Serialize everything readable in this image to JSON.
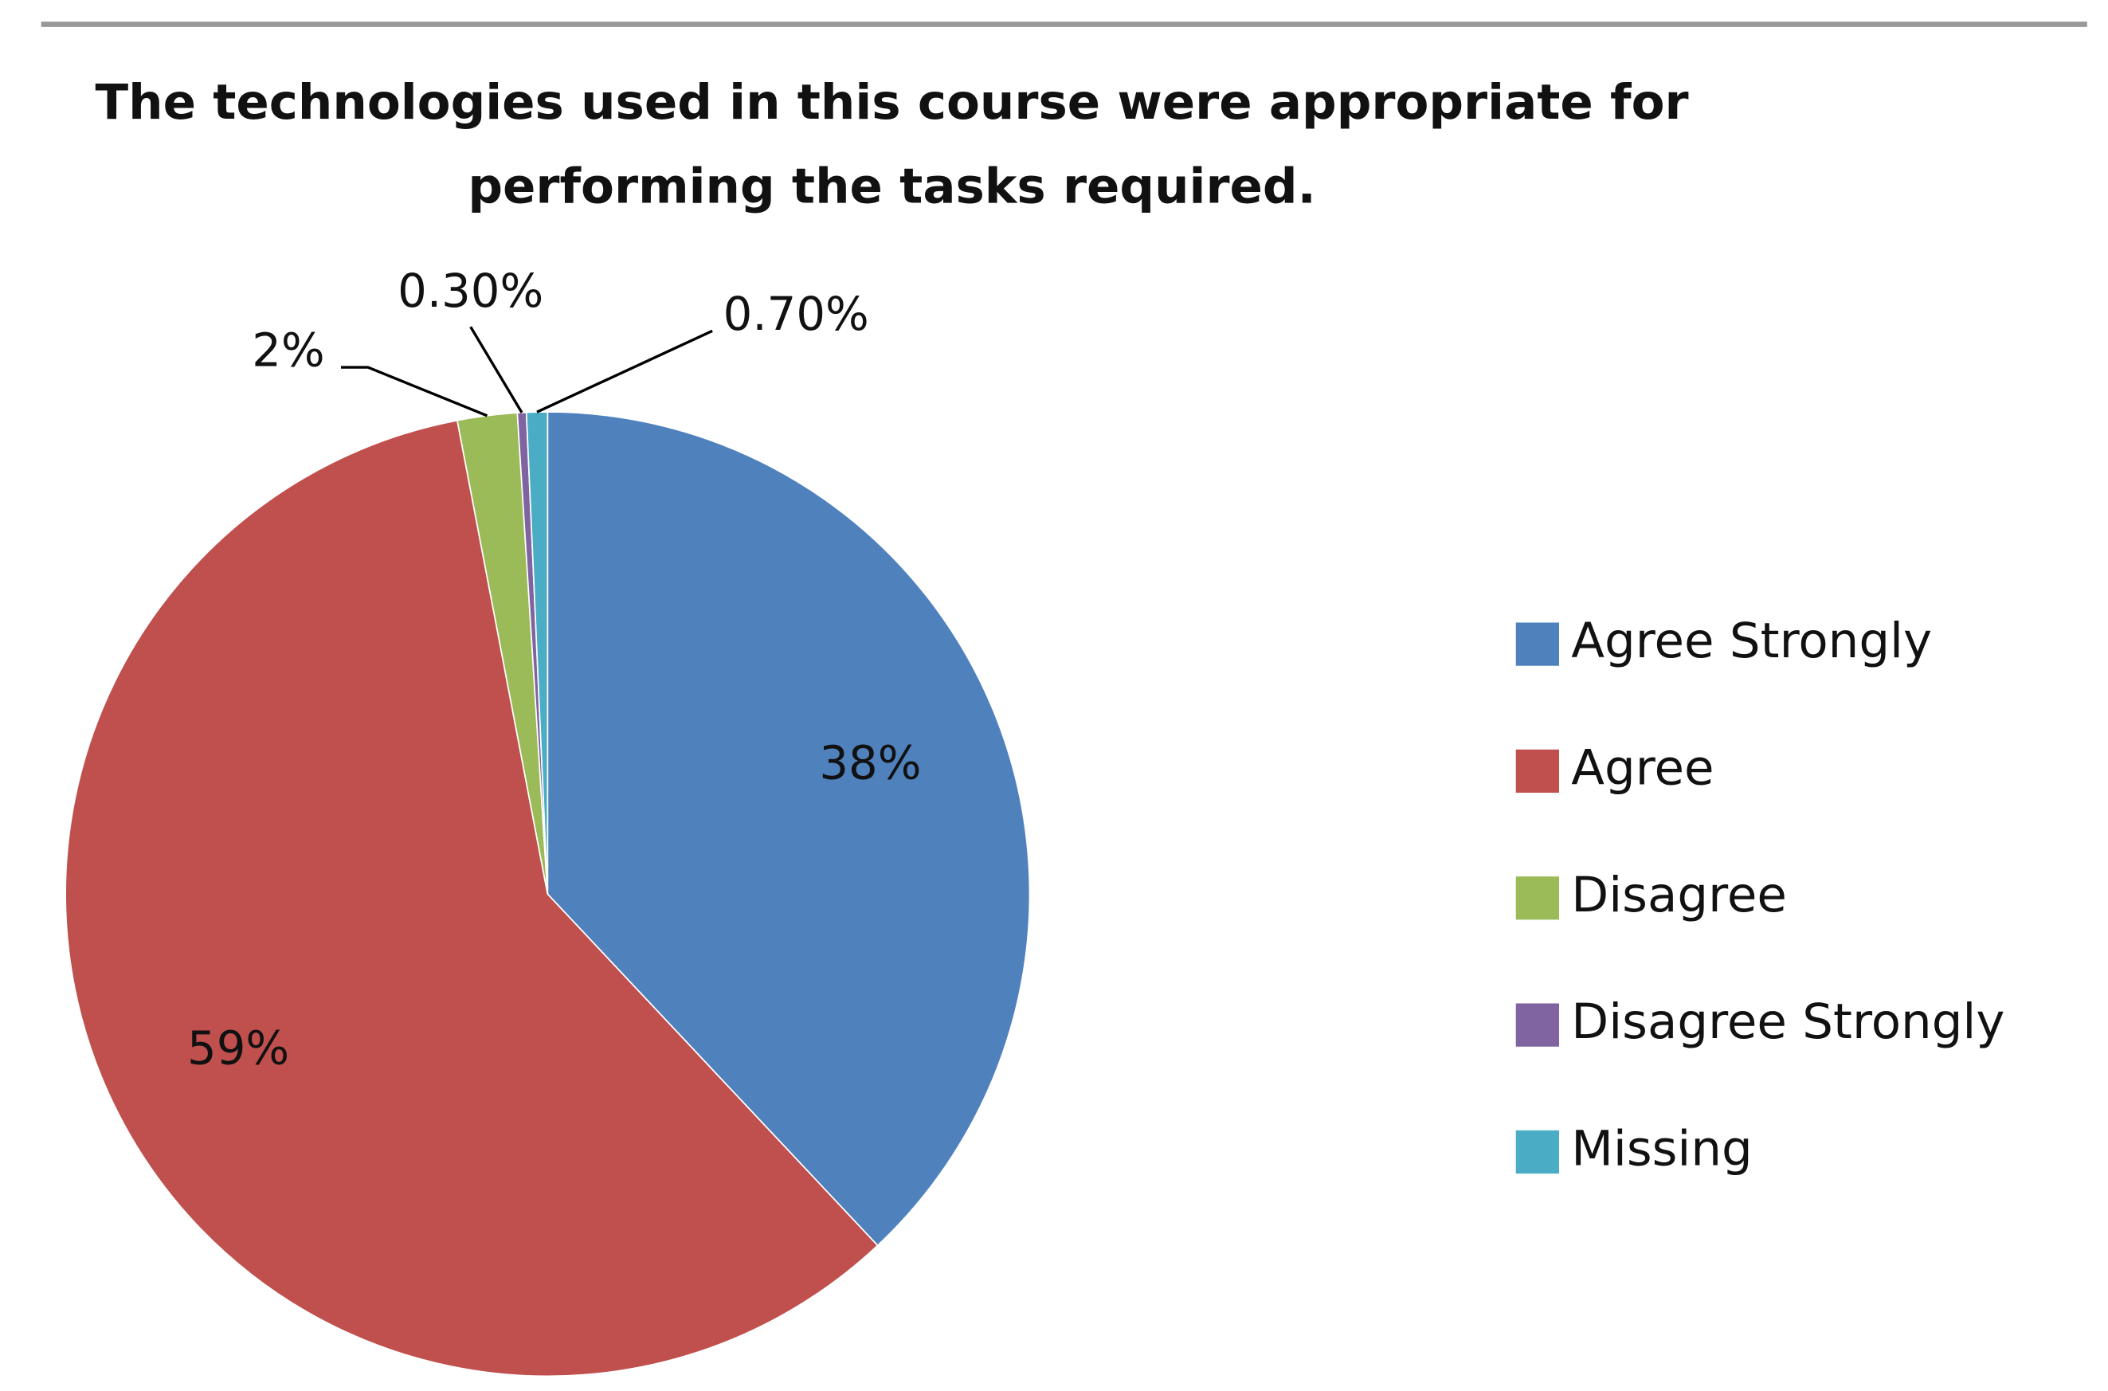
{
  "chart_data": {
    "type": "pie",
    "title": "The technologies used in this course were appropriate for performing the tasks required.",
    "categories": [
      "Agree Strongly",
      "Agree",
      "Disagree",
      "Disagree Strongly",
      "Missing"
    ],
    "values": [
      38,
      59,
      2,
      0.3,
      0.7
    ],
    "value_labels": [
      "38%",
      "59%",
      "2%",
      "0.30%",
      "0.70%"
    ],
    "colors": [
      "#4f81bd",
      "#c0504d",
      "#9bbb59",
      "#8064a2",
      "#4bacc6"
    ],
    "legend": "right"
  }
}
